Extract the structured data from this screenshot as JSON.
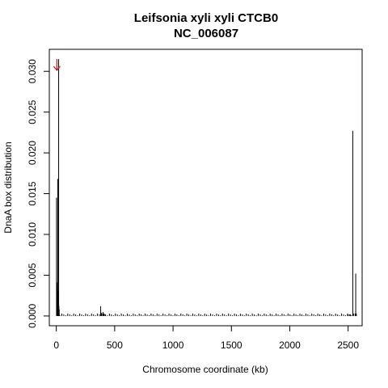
{
  "chart_data": {
    "type": "bar",
    "title": "Leifsonia xyli xyli CTCB0",
    "subtitle": "NC_006087",
    "xlabel": "Chromosome coordinate (kb)",
    "ylabel": "DnaA box distribution",
    "xlim": [
      -60,
      2620
    ],
    "ylim": [
      -0.0012,
      0.0327
    ],
    "x_ticks": [
      0,
      500,
      1000,
      1500,
      2000,
      2500
    ],
    "x_tick_labels": [
      "0",
      "500",
      "1000",
      "1500",
      "2000",
      "2500"
    ],
    "y_ticks": [
      0,
      0.005,
      0.01,
      0.015,
      0.02,
      0.025,
      0.03
    ],
    "y_tick_labels": [
      "0.000",
      "0.005",
      "0.010",
      "0.015",
      "0.020",
      "0.025",
      "0.030"
    ],
    "series": [
      {
        "x": [
          2,
          5,
          8,
          12,
          15,
          20,
          22,
          25,
          380,
          385,
          390,
          400,
          410,
          420,
          2500,
          2520,
          2540,
          2560,
          2565,
          2570
        ],
        "values": [
          0.0145,
          0.0035,
          0.0041,
          0.0168,
          0.003,
          0.0315,
          0.0012,
          0.0008,
          0.0012,
          0.0004,
          0.0003,
          0.0005,
          0.0003,
          0.0002,
          0.0002,
          0.0002,
          0.0227,
          0.0003,
          0.0052,
          0.0003
        ]
      }
    ],
    "origin_marker_x": 5,
    "colors": {
      "marks": "#000000",
      "origin_arrow": "#c0141e"
    }
  }
}
